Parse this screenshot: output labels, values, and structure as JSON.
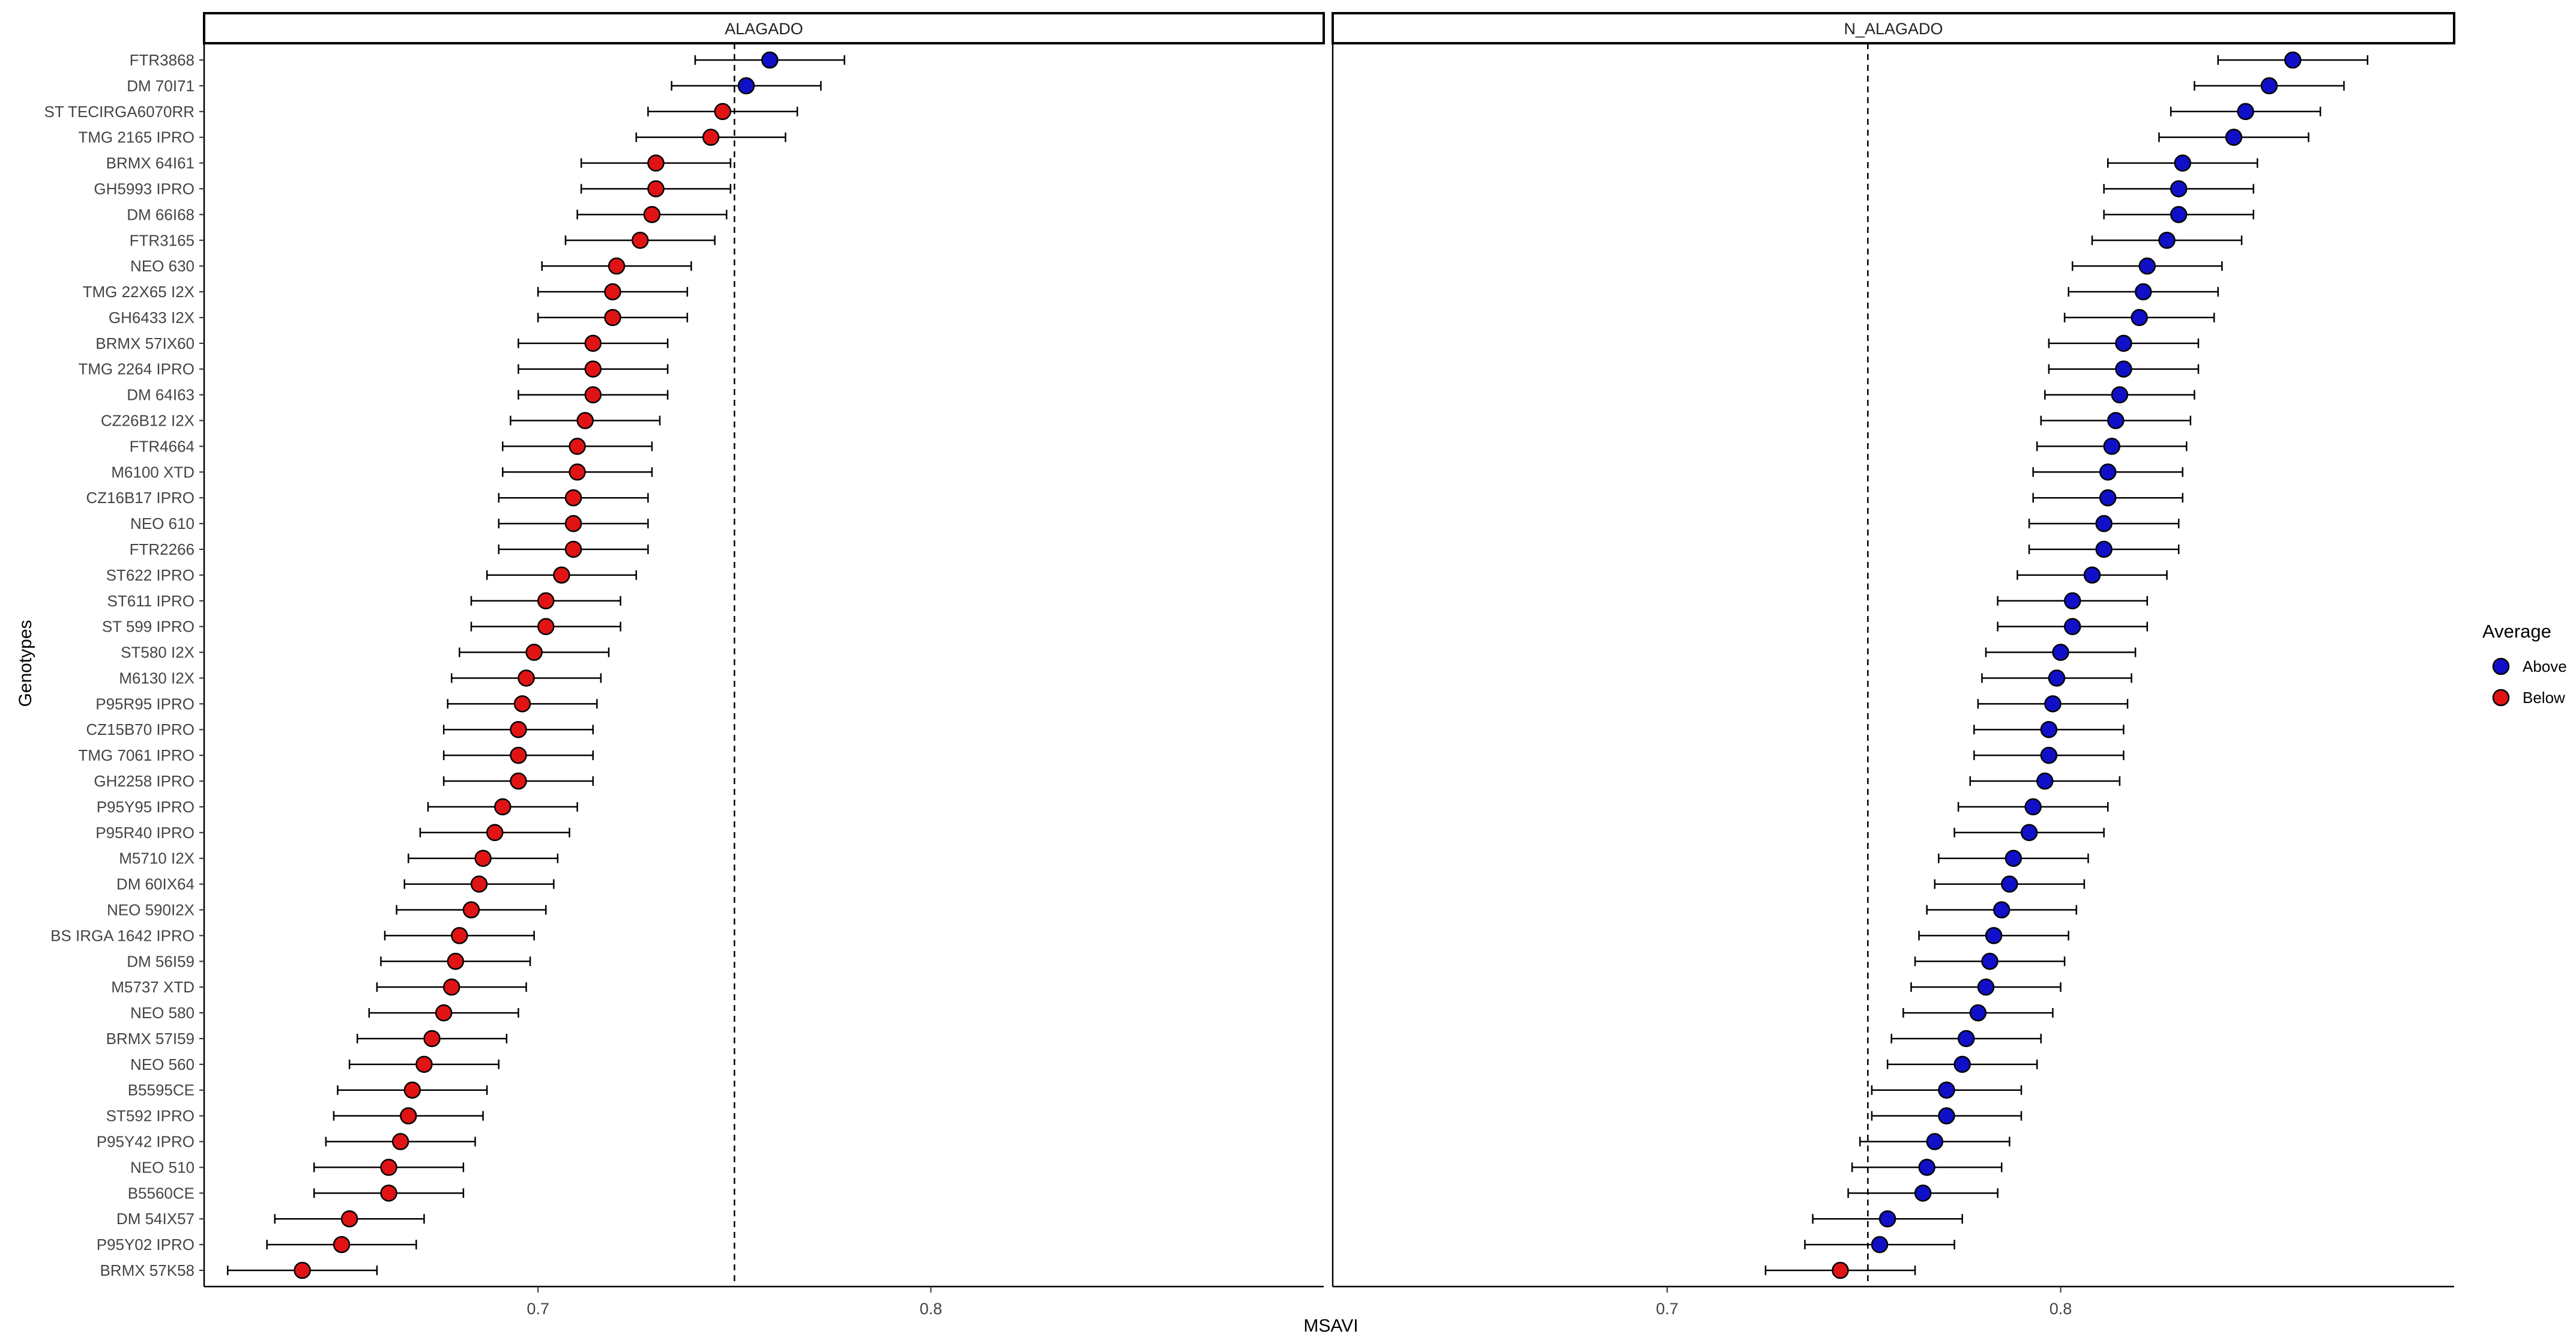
{
  "chart_data": {
    "type": "scatter",
    "xlabel": "MSAVI",
    "ylabel": "Genotypes",
    "xlim": [
      0.615,
      0.9
    ],
    "x_ticks": [
      0.7,
      0.8
    ],
    "x_tick_labels": [
      "0.7",
      "0.8"
    ],
    "grid": false,
    "error_bars": true,
    "legend": {
      "title": "Average",
      "placement": "right",
      "entries": [
        {
          "label": "Above",
          "color": "#1010C8"
        },
        {
          "label": "Below",
          "color": "#E01414"
        }
      ]
    },
    "genotypes": [
      "FTR3868",
      "DM 70I71",
      "ST TECIRGA6070RR",
      "TMG 2165 IPRO",
      "BRMX 64I61",
      "GH5993 IPRO",
      "DM 66I68",
      "FTR3165",
      "NEO 630",
      "TMG 22X65 I2X",
      "GH6433 I2X",
      "BRMX 57IX60",
      "TMG 2264 IPRO",
      "DM 64I63",
      "CZ26B12 I2X",
      "FTR4664",
      "M6100 XTD",
      "CZ16B17 IPRO",
      "NEO 610",
      "FTR2266",
      "ST622 IPRO",
      "ST611 IPRO",
      "ST 599 IPRO",
      "ST580 I2X",
      "M6130 I2X",
      "P95R95 IPRO",
      "CZ15B70 IPRO",
      "TMG 7061 IPRO",
      "GH2258 IPRO",
      "P95Y95 IPRO",
      "P95R40 IPRO",
      "M5710 I2X",
      "DM 60IX64",
      "NEO 590I2X",
      "BS IRGA 1642 IPRO",
      "DM 56I59",
      "M5737 XTD",
      "NEO 580",
      "BRMX 57I59",
      "NEO 560",
      "B5595CE",
      "ST592 IPRO",
      "P95Y42 IPRO",
      "NEO 510",
      "B5560CE",
      "DM 54IX57",
      "P95Y02 IPRO",
      "BRMX 57K58"
    ],
    "panels": [
      {
        "name": "ALAGADO",
        "reference_line": 0.75,
        "mean": [
          0.759,
          0.753,
          0.747,
          0.744,
          0.73,
          0.73,
          0.729,
          0.726,
          0.72,
          0.719,
          0.719,
          0.714,
          0.714,
          0.714,
          0.712,
          0.71,
          0.71,
          0.709,
          0.709,
          0.709,
          0.706,
          0.702,
          0.702,
          0.699,
          0.697,
          0.696,
          0.695,
          0.695,
          0.695,
          0.691,
          0.689,
          0.686,
          0.685,
          0.683,
          0.68,
          0.679,
          0.678,
          0.676,
          0.673,
          0.671,
          0.668,
          0.667,
          0.665,
          0.662,
          0.662,
          0.652,
          0.65,
          0.64
        ],
        "lower": [
          0.74,
          0.734,
          0.728,
          0.725,
          0.711,
          0.711,
          0.71,
          0.707,
          0.701,
          0.7,
          0.7,
          0.695,
          0.695,
          0.695,
          0.693,
          0.691,
          0.691,
          0.69,
          0.69,
          0.69,
          0.687,
          0.683,
          0.683,
          0.68,
          0.678,
          0.677,
          0.676,
          0.676,
          0.676,
          0.672,
          0.67,
          0.667,
          0.666,
          0.664,
          0.661,
          0.66,
          0.659,
          0.657,
          0.654,
          0.652,
          0.649,
          0.648,
          0.646,
          0.643,
          0.643,
          0.633,
          0.631,
          0.621
        ],
        "upper": [
          0.778,
          0.772,
          0.766,
          0.763,
          0.749,
          0.749,
          0.748,
          0.745,
          0.739,
          0.738,
          0.738,
          0.733,
          0.733,
          0.733,
          0.731,
          0.729,
          0.729,
          0.728,
          0.728,
          0.728,
          0.725,
          0.721,
          0.721,
          0.718,
          0.716,
          0.715,
          0.714,
          0.714,
          0.714,
          0.71,
          0.708,
          0.705,
          0.704,
          0.702,
          0.699,
          0.698,
          0.697,
          0.695,
          0.692,
          0.69,
          0.687,
          0.686,
          0.684,
          0.681,
          0.681,
          0.671,
          0.669,
          0.659
        ],
        "group": [
          "Above",
          "Above",
          "Below",
          "Below",
          "Below",
          "Below",
          "Below",
          "Below",
          "Below",
          "Below",
          "Below",
          "Below",
          "Below",
          "Below",
          "Below",
          "Below",
          "Below",
          "Below",
          "Below",
          "Below",
          "Below",
          "Below",
          "Below",
          "Below",
          "Below",
          "Below",
          "Below",
          "Below",
          "Below",
          "Below",
          "Below",
          "Below",
          "Below",
          "Below",
          "Below",
          "Below",
          "Below",
          "Below",
          "Below",
          "Below",
          "Below",
          "Below",
          "Below",
          "Below",
          "Below",
          "Below",
          "Below",
          "Below"
        ]
      },
      {
        "name": "N_ALAGADO",
        "reference_line": 0.751,
        "mean": [
          0.859,
          0.853,
          0.847,
          0.844,
          0.831,
          0.83,
          0.83,
          0.827,
          0.822,
          0.821,
          0.82,
          0.816,
          0.816,
          0.815,
          0.814,
          0.813,
          0.812,
          0.812,
          0.811,
          0.811,
          0.808,
          0.803,
          0.803,
          0.8,
          0.799,
          0.798,
          0.797,
          0.797,
          0.796,
          0.793,
          0.792,
          0.788,
          0.787,
          0.785,
          0.783,
          0.782,
          0.781,
          0.779,
          0.776,
          0.775,
          0.771,
          0.771,
          0.768,
          0.766,
          0.765,
          0.756,
          0.754,
          0.744
        ],
        "lower": [
          0.84,
          0.834,
          0.828,
          0.825,
          0.812,
          0.811,
          0.811,
          0.808,
          0.803,
          0.802,
          0.801,
          0.797,
          0.797,
          0.796,
          0.795,
          0.794,
          0.793,
          0.793,
          0.792,
          0.792,
          0.789,
          0.784,
          0.784,
          0.781,
          0.78,
          0.779,
          0.778,
          0.778,
          0.777,
          0.774,
          0.773,
          0.769,
          0.768,
          0.766,
          0.764,
          0.763,
          0.762,
          0.76,
          0.757,
          0.756,
          0.752,
          0.752,
          0.749,
          0.747,
          0.746,
          0.737,
          0.735,
          0.725
        ],
        "upper": [
          0.878,
          0.872,
          0.866,
          0.863,
          0.85,
          0.849,
          0.849,
          0.846,
          0.841,
          0.84,
          0.839,
          0.835,
          0.835,
          0.834,
          0.833,
          0.832,
          0.831,
          0.831,
          0.83,
          0.83,
          0.827,
          0.822,
          0.822,
          0.819,
          0.818,
          0.817,
          0.816,
          0.816,
          0.815,
          0.812,
          0.811,
          0.807,
          0.806,
          0.804,
          0.802,
          0.801,
          0.8,
          0.798,
          0.795,
          0.794,
          0.79,
          0.79,
          0.787,
          0.785,
          0.784,
          0.775,
          0.773,
          0.763
        ],
        "group": [
          "Above",
          "Above",
          "Above",
          "Above",
          "Above",
          "Above",
          "Above",
          "Above",
          "Above",
          "Above",
          "Above",
          "Above",
          "Above",
          "Above",
          "Above",
          "Above",
          "Above",
          "Above",
          "Above",
          "Above",
          "Above",
          "Above",
          "Above",
          "Above",
          "Above",
          "Above",
          "Above",
          "Above",
          "Above",
          "Above",
          "Above",
          "Above",
          "Above",
          "Above",
          "Above",
          "Above",
          "Above",
          "Above",
          "Above",
          "Above",
          "Above",
          "Above",
          "Above",
          "Above",
          "Above",
          "Above",
          "Above",
          "Below"
        ]
      }
    ]
  }
}
